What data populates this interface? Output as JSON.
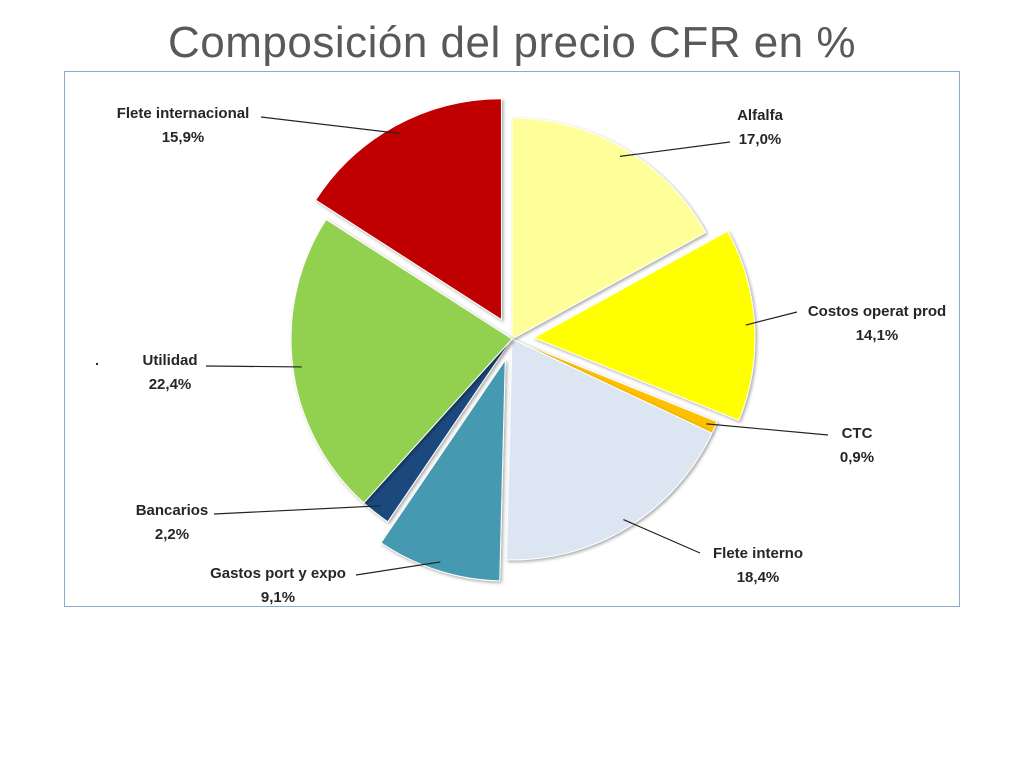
{
  "title": "Composición del precio CFR en %",
  "chart_data": {
    "type": "pie",
    "title": "Composición del precio CFR en %",
    "stray_mark": ".",
    "slices": [
      {
        "label": "Alfalfa",
        "value_label": "17,0%",
        "value": 17.0,
        "color": "#ffff99",
        "exploded": false
      },
      {
        "label": "Costos operat prod",
        "value_label": "14,1%",
        "value": 14.1,
        "color": "#ffff00",
        "exploded": true
      },
      {
        "label": "CTC",
        "value_label": "0,9%",
        "value": 0.9,
        "color": "#ffc000",
        "exploded": false
      },
      {
        "label": "Flete interno",
        "value_label": "18,4%",
        "value": 18.4,
        "color": "#dce6f2",
        "exploded": false
      },
      {
        "label": "Gastos port y expo",
        "value_label": "9,1%",
        "value": 9.1,
        "color": "#4499b0",
        "exploded": true
      },
      {
        "label": "Bancarios",
        "value_label": "2,2%",
        "value": 2.2,
        "color": "#1f497d",
        "exploded": false
      },
      {
        "label": "Utilidad",
        "value_label": "22,4%",
        "value": 22.4,
        "color": "#92d050",
        "exploded": false
      },
      {
        "label": "Flete internacional",
        "value_label": "15,9%",
        "value": 15.9,
        "color": "#c00000",
        "exploded": true
      }
    ]
  }
}
